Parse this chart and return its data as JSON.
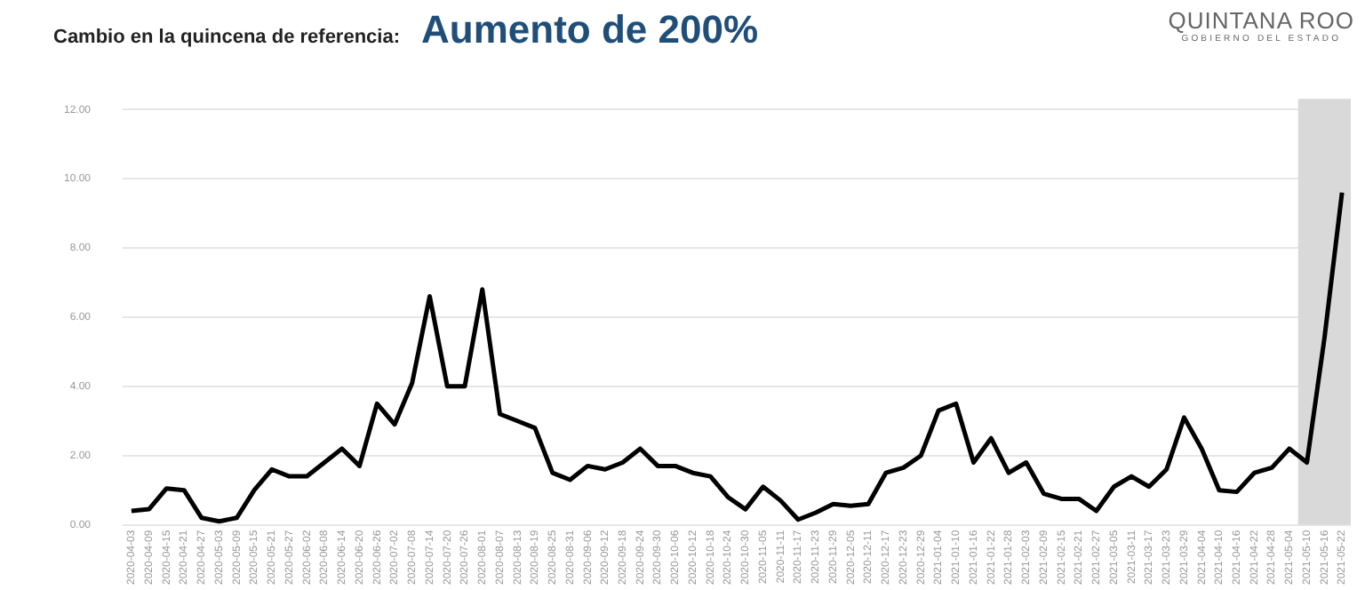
{
  "chart_data": {
    "type": "line",
    "title": "Cambio en la quincena de referencia:",
    "subtitle": "Aumento de 200%",
    "annotations": [
      "QUINTANA ROO",
      "GOBIERNO DEL ESTADO"
    ],
    "categories": [
      "2020-04-03",
      "2020-04-09",
      "2020-04-15",
      "2020-04-21",
      "2020-04-27",
      "2020-05-03",
      "2020-05-09",
      "2020-05-15",
      "2020-05-21",
      "2020-05-27",
      "2020-06-02",
      "2020-06-08",
      "2020-06-14",
      "2020-06-20",
      "2020-06-26",
      "2020-07-02",
      "2020-07-08",
      "2020-07-14",
      "2020-07-20",
      "2020-07-26",
      "2020-08-01",
      "2020-08-07",
      "2020-08-13",
      "2020-08-19",
      "2020-08-25",
      "2020-08-31",
      "2020-09-06",
      "2020-09-12",
      "2020-09-18",
      "2020-09-24",
      "2020-09-30",
      "2020-10-06",
      "2020-10-12",
      "2020-10-18",
      "2020-10-24",
      "2020-10-30",
      "2020-11-05",
      "2020-11-11",
      "2020-11-17",
      "2020-11-23",
      "2020-11-29",
      "2020-12-05",
      "2020-12-11",
      "2020-12-17",
      "2020-12-23",
      "2020-12-29",
      "2021-01-04",
      "2021-01-10",
      "2021-01-16",
      "2021-01-22",
      "2021-01-28",
      "2021-02-03",
      "2021-02-09",
      "2021-02-15",
      "2021-02-21",
      "2021-02-27",
      "2021-03-05",
      "2021-03-11",
      "2021-03-17",
      "2021-03-23",
      "2021-03-29",
      "2021-04-04",
      "2021-04-10",
      "2021-04-16",
      "2021-04-22",
      "2021-04-28",
      "2021-05-04",
      "2021-05-10",
      "2021-05-16",
      "2021-05-22"
    ],
    "series": [
      {
        "color": "#000000",
        "values": [
          0.4,
          0.45,
          1.05,
          1.0,
          0.2,
          0.1,
          0.2,
          1.0,
          1.6,
          1.4,
          1.4,
          1.8,
          2.2,
          1.7,
          3.5,
          2.9,
          4.1,
          6.6,
          4.0,
          4.0,
          6.8,
          3.2,
          3.0,
          2.8,
          1.5,
          1.3,
          1.7,
          1.6,
          1.8,
          2.2,
          1.7,
          1.7,
          1.5,
          1.4,
          0.8,
          0.45,
          1.1,
          0.7,
          0.15,
          0.35,
          0.6,
          0.55,
          0.6,
          1.5,
          1.65,
          2.0,
          3.3,
          3.5,
          1.8,
          2.5,
          1.5,
          1.8,
          0.9,
          0.75,
          0.75,
          0.4,
          1.1,
          1.4,
          1.1,
          1.6,
          3.1,
          2.2,
          1.0,
          0.95,
          1.5,
          1.65,
          2.2,
          1.8,
          5.4,
          9.6
        ]
      }
    ],
    "ylim": [
      0,
      12
    ],
    "yticks": [
      {
        "value": 0,
        "label": "0.00"
      },
      {
        "value": 2,
        "label": "2.00"
      },
      {
        "value": 4,
        "label": "4.00"
      },
      {
        "value": 6,
        "label": "6.00"
      },
      {
        "value": 8,
        "label": "8.00"
      },
      {
        "value": 10,
        "label": "10.00"
      },
      {
        "value": 12,
        "label": "12.00"
      }
    ],
    "grid": "y",
    "legend": false,
    "marker": "none",
    "line_style": "solid",
    "bands": [
      {
        "axis": "x",
        "from": "2021-05-10",
        "to": "2021-05-22",
        "color": "#d9d9d9"
      }
    ]
  }
}
